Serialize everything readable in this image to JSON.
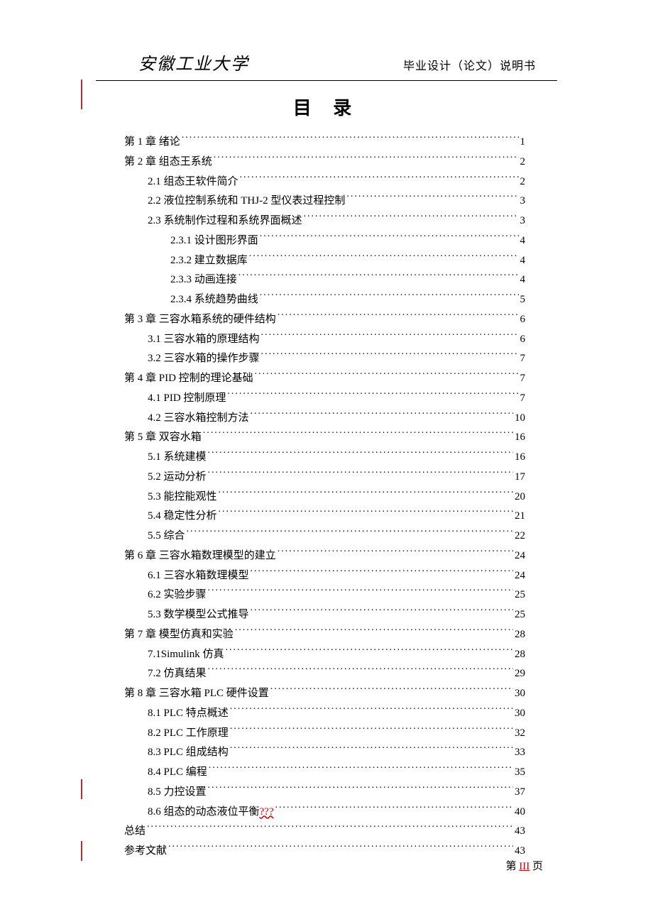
{
  "header": {
    "university": "安徽工业大学",
    "doc_type": "毕业设计（论文）说明书"
  },
  "title": "目 录",
  "toc": [
    {
      "level": 0,
      "label": "第 1 章 绪论",
      "page": "1"
    },
    {
      "level": 0,
      "label": "第 2 章 组态王系统",
      "page": "2"
    },
    {
      "level": 1,
      "label": "2.1 组态王软件简介",
      "page": "2"
    },
    {
      "level": 1,
      "label": "2.2 液位控制系统和 THJ-2 型仪表过程控制",
      "page": "3"
    },
    {
      "level": 1,
      "label": "2.3 系统制作过程和系统界面概述",
      "page": "3"
    },
    {
      "level": 2,
      "label": "2.3.1 设计图形界面",
      "page": "4"
    },
    {
      "level": 2,
      "label": "2.3.2 建立数据库",
      "page": "4"
    },
    {
      "level": 2,
      "label": "2.3.3 动画连接",
      "page": "4"
    },
    {
      "level": 2,
      "label": "2.3.4 系统趋势曲线",
      "page": "5"
    },
    {
      "level": 0,
      "label": "第 3 章 三容水箱系统的硬件结构",
      "page": "6"
    },
    {
      "level": 1,
      "label": "3.1 三容水箱的原理结构",
      "page": "6"
    },
    {
      "level": 1,
      "label": "3.2 三容水箱的操作步骤",
      "page": "7"
    },
    {
      "level": 0,
      "label": "第 4 章 PID 控制的理论基础",
      "page": "7"
    },
    {
      "level": 1,
      "label": "4.1 PID 控制原理",
      "page": "7"
    },
    {
      "level": 1,
      "label": "4.2 三容水箱控制方法",
      "page": "10"
    },
    {
      "level": 0,
      "label": "第 5 章 双容水箱",
      "page": "16"
    },
    {
      "level": 1,
      "label": "5.1 系统建模",
      "page": "16"
    },
    {
      "level": 1,
      "label": "5.2 运动分析",
      "page": "17"
    },
    {
      "level": 1,
      "label": "5.3 能控能观性",
      "page": "20"
    },
    {
      "level": 1,
      "label": "5.4 稳定性分析",
      "page": "21"
    },
    {
      "level": 1,
      "label": "5.5 综合",
      "page": "22"
    },
    {
      "level": 0,
      "label": "第 6 章 三容水箱数理模型的建立",
      "page": "24"
    },
    {
      "level": 1,
      "label": "6.1 三容水箱数理模型",
      "page": "24"
    },
    {
      "level": 1,
      "label": "6.2 实验步骤",
      "page": "25"
    },
    {
      "level": 1,
      "label": "5.3 数学模型公式推导",
      "page": "25"
    },
    {
      "level": 0,
      "label": "第 7 章 模型仿真和实验",
      "page": "28"
    },
    {
      "level": 1,
      "label": "7.1Simulink 仿真",
      "page": "28"
    },
    {
      "level": 1,
      "label": "7.2 仿真结果",
      "page": "29"
    },
    {
      "level": 0,
      "label": "第 8 章 三容水箱 PLC 硬件设置",
      "page": "30"
    },
    {
      "level": 1,
      "label": "8.1 PLC 特点概述",
      "page": "30"
    },
    {
      "level": 1,
      "label": "8.2 PLC 工作原理",
      "page": "32"
    },
    {
      "level": 1,
      "label": "8.3 PLC 组成结构",
      "page": "33"
    },
    {
      "level": 1,
      "label": "8.4 PLC 编程",
      "page": "35"
    },
    {
      "level": 1,
      "label": "8.5 力控设置",
      "page": "37"
    },
    {
      "level": 1,
      "label": "8.6 组态的动态液位平衡",
      "error": "???",
      "page": "40"
    },
    {
      "level": 0,
      "label": "总结",
      "page": "43"
    },
    {
      "level": 0,
      "label": "参考文献",
      "page": "43"
    }
  ],
  "footer": {
    "prefix": "第 ",
    "roman": "III",
    "suffix": " 页"
  },
  "colors": {
    "text": "#000000",
    "background": "#ffffff",
    "error": "#cc0000",
    "margin_mark": "#aa3333"
  },
  "typography": {
    "body_fontsize": 15,
    "title_fontsize": 26,
    "university_fontsize": 24,
    "header_fontsize": 16,
    "line_height": 1.85
  }
}
